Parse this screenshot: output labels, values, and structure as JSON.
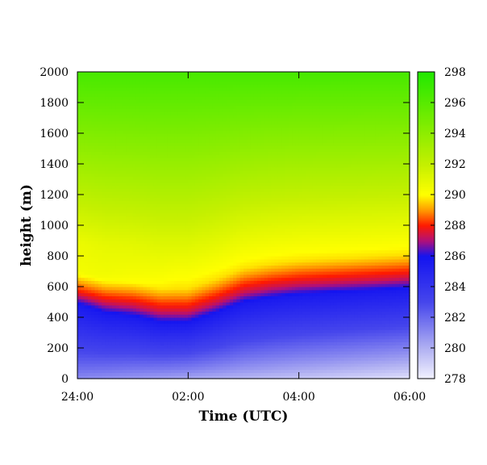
{
  "chart_data": {
    "type": "heatmap",
    "title": "",
    "xlabel": "Time (UTC)",
    "ylabel": "height (m)",
    "x_tick_labels": [
      "24:00",
      "02:00",
      "04:00",
      "06:00"
    ],
    "x_range_hours": [
      0,
      6
    ],
    "x_tick_hours": [
      0,
      2,
      4,
      6
    ],
    "ylim": [
      0,
      2000
    ],
    "y_ticks": [
      0,
      200,
      400,
      600,
      800,
      1000,
      1200,
      1400,
      1600,
      1800,
      2000
    ],
    "colorbar": {
      "range": [
        278,
        298
      ],
      "ticks": [
        278,
        280,
        282,
        284,
        286,
        288,
        290,
        292,
        294,
        296,
        298
      ],
      "colors": [
        {
          "value": 278,
          "color": "#f2f2ff"
        },
        {
          "value": 280,
          "color": "#b0b0f2"
        },
        {
          "value": 283,
          "color": "#4646ec"
        },
        {
          "value": 286,
          "color": "#1414f0"
        },
        {
          "value": 287,
          "color": "#b0107a"
        },
        {
          "value": 288,
          "color": "#ff1a00"
        },
        {
          "value": 289,
          "color": "#ff9a00"
        },
        {
          "value": 290,
          "color": "#ffff00"
        },
        {
          "value": 292,
          "color": "#c4f000"
        },
        {
          "value": 298,
          "color": "#22e800"
        }
      ]
    },
    "inversion_base_m": [
      {
        "hour": 0,
        "height": 480
      },
      {
        "hour": 0.5,
        "height": 420
      },
      {
        "hour": 1.0,
        "height": 400
      },
      {
        "hour": 1.5,
        "height": 360
      },
      {
        "hour": 2.0,
        "height": 360
      },
      {
        "hour": 2.5,
        "height": 420
      },
      {
        "hour": 3.0,
        "height": 490
      },
      {
        "hour": 3.5,
        "height": 520
      },
      {
        "hour": 4.0,
        "height": 540
      },
      {
        "hour": 5.0,
        "height": 560
      },
      {
        "hour": 6.0,
        "height": 580
      }
    ]
  }
}
